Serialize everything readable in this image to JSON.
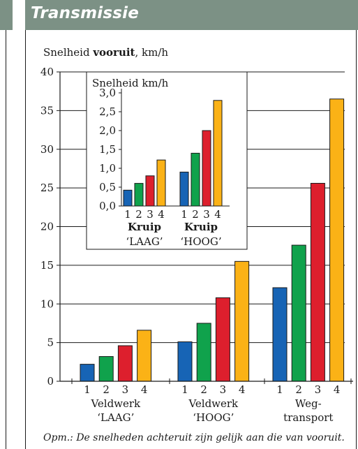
{
  "header": {
    "title": "Transmissie"
  },
  "footnote": "Opm.: De snelheden achteruit zijn gelijk aan die van vooruit.",
  "colors": {
    "header_bg": "#7c9185",
    "blue": "#1764b5",
    "green": "#10a24c",
    "red": "#dd1f2d",
    "orange": "#fbb216"
  },
  "chart_data": [
    {
      "type": "bar",
      "title_regular": "Snelheid ",
      "title_bold": "vooruit",
      "title_unit": ", km/h",
      "ylim": [
        0,
        40
      ],
      "yticks": [
        0,
        5,
        10,
        15,
        20,
        25,
        30,
        35,
        40
      ],
      "grid": true,
      "groups": [
        {
          "label_line1": "Veldwerk",
          "label_line2": "‘LAAG’",
          "categories": [
            "1",
            "2",
            "3",
            "4"
          ],
          "values": [
            2.2,
            3.2,
            4.6,
            6.6
          ]
        },
        {
          "label_line1": "Veldwerk",
          "label_line2": "‘HOOG’",
          "categories": [
            "1",
            "2",
            "3",
            "4"
          ],
          "values": [
            5.1,
            7.5,
            10.8,
            15.5
          ]
        },
        {
          "label_line1": "Weg-",
          "label_line2": "transport",
          "categories": [
            "1",
            "2",
            "3",
            "4"
          ],
          "values": [
            12.1,
            17.6,
            25.6,
            36.5
          ]
        }
      ]
    },
    {
      "type": "bar",
      "title": "Snelheid km/h",
      "ylim": [
        0,
        3.0
      ],
      "yticks": [
        "0,0",
        "0,5",
        "1,0",
        "1,5",
        "2,0",
        "2,5",
        "3,0"
      ],
      "groups": [
        {
          "label_line1": "Kruip",
          "label_line2": "‘LAAG’",
          "categories": [
            "1",
            "2",
            "3",
            "4"
          ],
          "values": [
            0.42,
            0.6,
            0.8,
            1.22
          ]
        },
        {
          "label_line1": "Kruip",
          "label_line2": "‘HOOG’",
          "categories": [
            "1",
            "2",
            "3",
            "4"
          ],
          "values": [
            0.9,
            1.4,
            2.0,
            2.8
          ]
        }
      ]
    }
  ]
}
